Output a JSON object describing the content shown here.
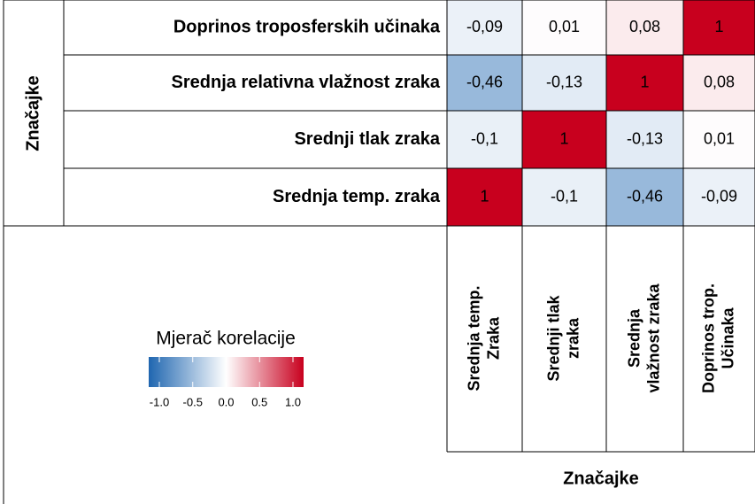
{
  "chart_data": {
    "type": "heatmap",
    "rows": [
      "Doprinos troposferskih učinaka",
      "Srednja relativna vlažnost zraka",
      "Srednji tlak zraka",
      "Srednja temp. zraka"
    ],
    "columns": [
      [
        "Srednja temp.",
        "Zraka"
      ],
      [
        "Srednji tlak",
        "zraka"
      ],
      [
        "Srednja",
        "vlažnost zraka"
      ],
      [
        "Doprinos trop.",
        "Učinaka"
      ]
    ],
    "values": [
      [
        -0.09,
        0.01,
        0.08,
        1
      ],
      [
        -0.46,
        -0.13,
        1,
        0.08
      ],
      [
        -0.1,
        1,
        -0.13,
        0.01
      ],
      [
        1,
        -0.1,
        -0.46,
        -0.09
      ]
    ],
    "value_labels": [
      [
        "-0,09",
        "0,01",
        "0,08",
        "1"
      ],
      [
        "-0,46",
        "-0,13",
        "1",
        "0,08"
      ],
      [
        "-0,1",
        "1",
        "-0,13",
        "0,01"
      ],
      [
        "1",
        "-0,1",
        "-0,46",
        "-0,09"
      ]
    ],
    "y_label": "Značajke",
    "x_label": "Značajke",
    "colorbar_title": "Mjerač korelacije",
    "colorscale": [
      "#1f66b0",
      "#ffffff",
      "#c8001e"
    ],
    "clim": [
      -1,
      1
    ],
    "cticks": [
      {
        "value": -1,
        "label": "-1.0"
      },
      {
        "value": -0.5,
        "label": "-0.5"
      },
      {
        "value": 0,
        "label": "0.0"
      },
      {
        "value": 0.5,
        "label": "0.5"
      },
      {
        "value": 1,
        "label": "1.0"
      }
    ]
  }
}
